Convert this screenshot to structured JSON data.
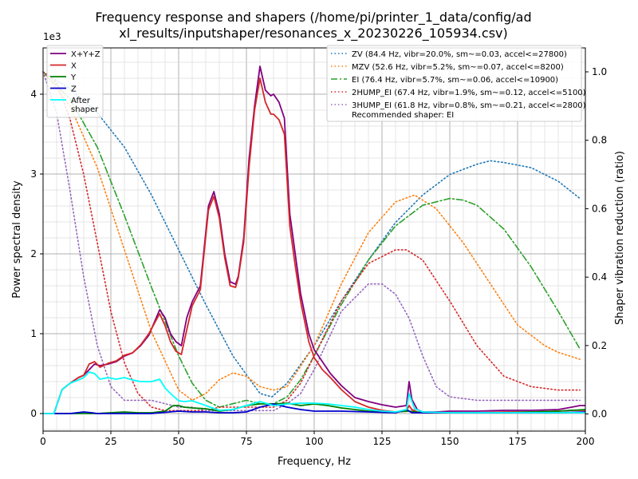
{
  "chart_data": {
    "type": "line",
    "title": [
      "Frequency response and shapers (/home/pi/printer_1_data/config/ad",
      "xl_results/inputshaper/resonances_x_20230226_105934.csv)"
    ],
    "xlabel": "Frequency, Hz",
    "ylabel_left": "Power spectral density",
    "ylabel_right": "Shaper vibration reduction (ratio)",
    "y_offset_text": "1e3",
    "xlim": [
      0,
      200
    ],
    "ylim_left": [
      -0.22,
      4.58
    ],
    "ylim_right": [
      -0.05,
      1.07
    ],
    "x_ticks": [
      0,
      25,
      50,
      75,
      100,
      125,
      150,
      175,
      200
    ],
    "y_ticks_left": [
      0,
      1,
      2,
      3,
      4
    ],
    "y_ticks_right": [
      0.0,
      0.2,
      0.4,
      0.6,
      0.8,
      1.0
    ],
    "grid": true,
    "psd_series": [
      {
        "name": "X+Y+Z",
        "color": "#800080",
        "x": [
          0,
          4,
          7,
          10,
          13,
          15,
          17,
          19,
          21,
          24,
          27,
          30,
          33,
          36,
          39,
          43,
          45,
          47,
          49,
          51,
          53,
          55,
          58,
          61,
          63,
          65,
          67,
          69,
          71,
          72,
          74,
          76,
          78,
          80,
          82,
          84,
          85,
          87,
          89,
          91,
          93,
          95,
          98,
          100,
          103,
          106,
          110,
          115,
          120,
          125,
          130,
          134,
          135,
          136,
          138,
          140,
          145,
          150,
          160,
          170,
          180,
          190,
          195,
          198,
          200
        ],
        "y": [
          0,
          0,
          0.3,
          0.38,
          0.45,
          0.48,
          0.55,
          0.62,
          0.6,
          0.62,
          0.65,
          0.72,
          0.76,
          0.85,
          0.98,
          1.3,
          1.2,
          1.0,
          0.9,
          0.85,
          1.2,
          1.4,
          1.6,
          2.6,
          2.78,
          2.5,
          2.0,
          1.65,
          1.62,
          1.72,
          2.2,
          3.2,
          3.85,
          4.35,
          4.05,
          3.98,
          4.0,
          3.9,
          3.7,
          2.5,
          2.0,
          1.5,
          1.0,
          0.8,
          0.65,
          0.5,
          0.35,
          0.2,
          0.15,
          0.11,
          0.08,
          0.1,
          0.4,
          0.18,
          0.05,
          0.02,
          0.02,
          0.03,
          0.03,
          0.04,
          0.04,
          0.05,
          0.08,
          0.1,
          0.1
        ]
      },
      {
        "name": "X",
        "color": "#d62728",
        "x": [
          0,
          4,
          7,
          10,
          13,
          15,
          17,
          19,
          21,
          24,
          27,
          30,
          33,
          36,
          39,
          43,
          45,
          47,
          49,
          51,
          53,
          55,
          58,
          61,
          63,
          65,
          67,
          69,
          71,
          72,
          74,
          76,
          78,
          80,
          82,
          84,
          85,
          87,
          89,
          91,
          93,
          95,
          98,
          100,
          103,
          106,
          110,
          115,
          120,
          125,
          130,
          134,
          135,
          136,
          138,
          140,
          145,
          150,
          160,
          170,
          180,
          190,
          195,
          198,
          200
        ],
        "y": [
          0,
          0,
          0.3,
          0.38,
          0.45,
          0.48,
          0.62,
          0.65,
          0.58,
          0.63,
          0.66,
          0.73,
          0.76,
          0.86,
          1.0,
          1.25,
          1.1,
          0.9,
          0.78,
          0.74,
          1.05,
          1.35,
          1.55,
          2.55,
          2.72,
          2.45,
          1.95,
          1.6,
          1.58,
          1.7,
          2.15,
          3.1,
          3.8,
          4.2,
          3.9,
          3.75,
          3.75,
          3.68,
          3.5,
          2.35,
          1.85,
          1.4,
          0.9,
          0.7,
          0.55,
          0.45,
          0.3,
          0.15,
          0.08,
          0.04,
          0.02,
          0.04,
          0.1,
          0.05,
          0.02,
          0.01,
          0.01,
          0.01,
          0.01,
          0.02,
          0.02,
          0.03,
          0.04,
          0.04,
          0.04
        ]
      },
      {
        "name": "Y",
        "color": "#008000",
        "x": [
          0,
          10,
          20,
          30,
          35,
          40,
          45,
          48,
          50,
          52,
          55,
          60,
          65,
          70,
          75,
          80,
          85,
          90,
          95,
          100,
          105,
          110,
          115,
          120,
          125,
          130,
          135,
          140,
          150,
          160,
          170,
          180,
          190,
          200
        ],
        "y": [
          0,
          0,
          0,
          0.02,
          0.01,
          0.01,
          0.03,
          0.1,
          0.1,
          0.08,
          0.07,
          0.06,
          0.03,
          0.05,
          0.1,
          0.12,
          0.12,
          0.13,
          0.1,
          0.12,
          0.1,
          0.07,
          0.05,
          0.03,
          0.02,
          0.02,
          0.03,
          0.01,
          0.01,
          0.01,
          0.01,
          0.02,
          0.03,
          0.05
        ]
      },
      {
        "name": "Z",
        "color": "#0000cd",
        "x": [
          0,
          10,
          15,
          18,
          20,
          25,
          30,
          40,
          50,
          55,
          60,
          65,
          70,
          75,
          80,
          85,
          90,
          95,
          100,
          110,
          120,
          130,
          134,
          136,
          140,
          150,
          160,
          170,
          180,
          190,
          200
        ],
        "y": [
          0,
          0,
          0.02,
          0.01,
          0.0,
          0.0,
          0.0,
          0.0,
          0.03,
          0.02,
          0.02,
          0.01,
          0.01,
          0.02,
          0.08,
          0.12,
          0.08,
          0.05,
          0.03,
          0.03,
          0.02,
          0.01,
          0.05,
          0.01,
          0.01,
          0.01,
          0.01,
          0.01,
          0.01,
          0.01,
          0.02
        ]
      },
      {
        "name": "After\nshaper",
        "color": "#00ffff",
        "x": [
          0,
          4,
          7,
          10,
          13,
          15,
          17,
          19,
          21,
          24,
          27,
          30,
          33,
          36,
          40,
          43,
          45,
          47,
          50,
          52,
          55,
          60,
          65,
          70,
          75,
          80,
          85,
          90,
          95,
          100,
          105,
          110,
          115,
          120,
          125,
          130,
          134,
          135,
          137,
          140,
          150,
          160,
          170,
          180,
          190,
          200
        ],
        "y": [
          0,
          0,
          0.3,
          0.38,
          0.42,
          0.45,
          0.52,
          0.5,
          0.43,
          0.45,
          0.43,
          0.45,
          0.42,
          0.4,
          0.4,
          0.43,
          0.32,
          0.25,
          0.16,
          0.15,
          0.16,
          0.1,
          0.04,
          0.05,
          0.1,
          0.15,
          0.1,
          0.12,
          0.13,
          0.13,
          0.12,
          0.1,
          0.08,
          0.05,
          0.03,
          0.02,
          0.05,
          0.25,
          0.06,
          0.02,
          0.01,
          0.01,
          0.01,
          0.01,
          0.01,
          0.01
        ]
      }
    ],
    "shaper_series": [
      {
        "name": "ZV (84.4 Hz, vibr=20.0%, sm~=0.03, accel<=27800)",
        "color": "#1f77b4",
        "dash": "dotted",
        "x": [
          0,
          10,
          20,
          30,
          40,
          50,
          60,
          70,
          80,
          84.4,
          90,
          100,
          110,
          120,
          130,
          140,
          150,
          160,
          165,
          170,
          180,
          190,
          198
        ],
        "y": [
          1.0,
          0.95,
          0.88,
          0.78,
          0.64,
          0.48,
          0.32,
          0.17,
          0.06,
          0.05,
          0.09,
          0.2,
          0.33,
          0.45,
          0.56,
          0.64,
          0.7,
          0.73,
          0.74,
          0.735,
          0.72,
          0.68,
          0.63
        ]
      },
      {
        "name": "MZV (52.6 Hz, vibr=5.2%, sm~=0.07, accel<=8200)",
        "color": "#ff7f0e",
        "dash": "dotted",
        "x": [
          0,
          10,
          20,
          30,
          40,
          50,
          55,
          60,
          65,
          70,
          75,
          80,
          85,
          90,
          100,
          110,
          120,
          130,
          137,
          145,
          155,
          165,
          175,
          185,
          190,
          198
        ],
        "y": [
          1.0,
          0.9,
          0.72,
          0.48,
          0.24,
          0.07,
          0.04,
          0.06,
          0.1,
          0.12,
          0.11,
          0.08,
          0.07,
          0.08,
          0.2,
          0.38,
          0.53,
          0.62,
          0.64,
          0.6,
          0.5,
          0.38,
          0.26,
          0.2,
          0.18,
          0.16
        ]
      },
      {
        "name": "EI (76.4 Hz, vibr=5.7%, sm~=0.06, accel<=10900)",
        "color": "#2ca02c",
        "dash": "dashdot",
        "x": [
          0,
          10,
          20,
          30,
          40,
          50,
          55,
          60,
          65,
          70,
          75,
          80,
          85,
          90,
          95,
          100,
          110,
          120,
          130,
          140,
          150,
          155,
          160,
          170,
          180,
          190,
          198
        ],
        "y": [
          1.0,
          0.92,
          0.78,
          0.58,
          0.37,
          0.17,
          0.09,
          0.04,
          0.02,
          0.03,
          0.04,
          0.03,
          0.03,
          0.05,
          0.1,
          0.17,
          0.32,
          0.45,
          0.55,
          0.61,
          0.63,
          0.625,
          0.61,
          0.54,
          0.43,
          0.3,
          0.19
        ]
      },
      {
        "name": "2HUMP_EI (67.4 Hz, vibr=1.9%, sm~=0.12, accel<=5100)",
        "color": "#d62728",
        "dash": "dotted",
        "x": [
          0,
          5,
          10,
          15,
          20,
          25,
          30,
          35,
          40,
          45,
          50,
          55,
          60,
          65,
          70,
          75,
          80,
          85,
          90,
          95,
          100,
          110,
          120,
          130,
          134,
          140,
          150,
          160,
          170,
          180,
          190,
          198
        ],
        "y": [
          1.0,
          0.97,
          0.86,
          0.7,
          0.5,
          0.3,
          0.15,
          0.06,
          0.02,
          0.01,
          0.01,
          0.01,
          0.01,
          0.02,
          0.02,
          0.02,
          0.02,
          0.02,
          0.04,
          0.09,
          0.17,
          0.33,
          0.44,
          0.48,
          0.48,
          0.45,
          0.33,
          0.2,
          0.11,
          0.08,
          0.07,
          0.07
        ]
      },
      {
        "name": "3HUMP_EI (61.8 Hz, vibr=0.8%, sm~=0.21, accel<=2800)",
        "color": "#9467bd",
        "dash": "dotted",
        "x": [
          0,
          5,
          10,
          15,
          20,
          25,
          30,
          35,
          40,
          45,
          50,
          55,
          60,
          65,
          70,
          75,
          80,
          85,
          90,
          95,
          100,
          110,
          120,
          125,
          130,
          135,
          140,
          145,
          150,
          160,
          170,
          180,
          190,
          198
        ],
        "y": [
          1.0,
          0.88,
          0.65,
          0.4,
          0.2,
          0.08,
          0.04,
          0.04,
          0.04,
          0.03,
          0.02,
          0.02,
          0.01,
          0.01,
          0.01,
          0.01,
          0.01,
          0.01,
          0.03,
          0.06,
          0.13,
          0.3,
          0.38,
          0.38,
          0.35,
          0.28,
          0.17,
          0.08,
          0.05,
          0.04,
          0.04,
          0.04,
          0.04,
          0.04
        ]
      }
    ],
    "legend_left": "top-left",
    "legend_right": "top-right",
    "recommended_text": "Recommended shaper: EI"
  }
}
